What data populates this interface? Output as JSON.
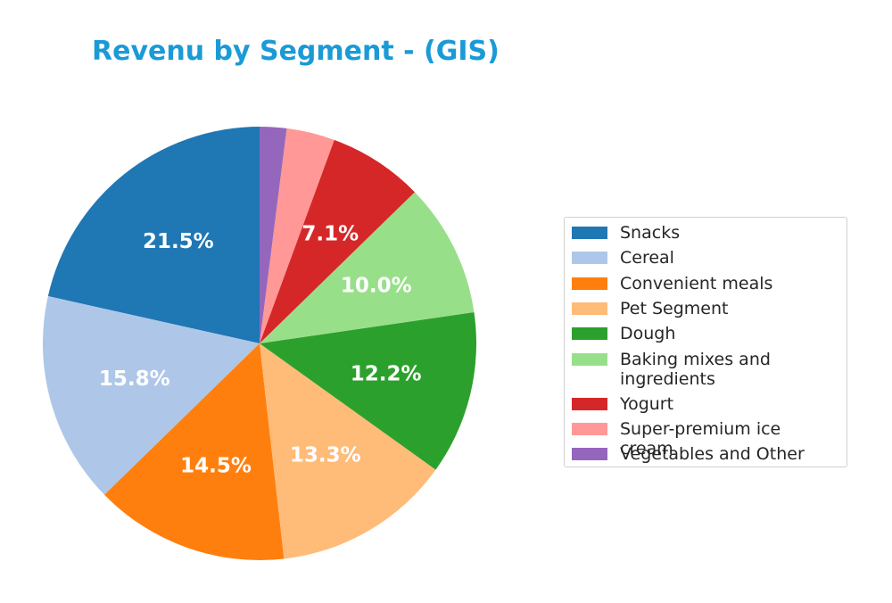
{
  "chart_data": {
    "type": "pie",
    "title": "Revenu by Segment - (GIS)",
    "title_color": "#1a9ad6",
    "start_angle_deg": 90,
    "direction": "counterclockwise",
    "legend_position": "right",
    "slices": [
      {
        "name": "Snacks",
        "value": 21.5,
        "label": "21.5%",
        "color": "#1f77b4"
      },
      {
        "name": "Cereal",
        "value": 15.8,
        "label": "15.8%",
        "color": "#aec7e8"
      },
      {
        "name": "Convenient meals",
        "value": 14.5,
        "label": "14.5%",
        "color": "#ff7f0e"
      },
      {
        "name": "Pet Segment",
        "value": 13.3,
        "label": "13.3%",
        "color": "#ffbb78"
      },
      {
        "name": "Dough",
        "value": 12.2,
        "label": "12.2%",
        "color": "#2ca02c"
      },
      {
        "name": "Baking mixes and ingredients",
        "value": 10.0,
        "label": "10.0%",
        "color": "#98df8a"
      },
      {
        "name": "Yogurt",
        "value": 7.1,
        "label": "7.1%",
        "color": "#d62728"
      },
      {
        "name": "Super-premium ice cream",
        "value": 3.6,
        "label": "",
        "color": "#ff9896"
      },
      {
        "name": "Vegetables and Other",
        "value": 2.0,
        "label": "",
        "color": "#9467bd"
      }
    ]
  }
}
